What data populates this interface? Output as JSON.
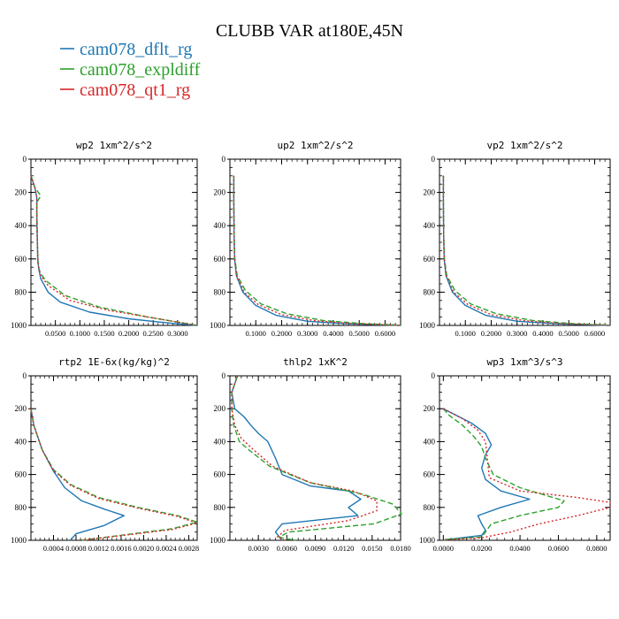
{
  "title": "CLUBB VAR at180E,45N",
  "colors": {
    "cam078_dflt_rg": "#1f77b4",
    "cam078_expldiff": "#2ca02c",
    "cam078_qt1_rg": "#d62728"
  },
  "legend": [
    {
      "name": "cam078_dflt_rg",
      "color": "#1f77b4"
    },
    {
      "name": "cam078_expldiff",
      "color": "#2ca02c"
    },
    {
      "name": "cam078_qt1_rg",
      "color": "#d62728"
    }
  ],
  "chart_data": [
    {
      "type": "line",
      "title": "wp2  1xm^2/s^2",
      "xlim": [
        0,
        0.34
      ],
      "ylim": [
        1000,
        0
      ],
      "xticks": [
        0.05,
        0.1,
        0.15,
        0.2,
        0.25,
        0.3
      ],
      "xtick_labels": [
        "0.0500",
        "0.1000",
        "0.1500",
        "0.2000",
        "0.2500",
        "0.3000"
      ],
      "yticks": [
        0,
        200,
        400,
        600,
        800,
        1000
      ],
      "ytick_labels": [
        "0",
        "200",
        "400",
        "600",
        "800",
        "1000"
      ],
      "series": [
        {
          "name": "cam078_dflt_rg",
          "style": "solid",
          "x": [
            0,
            0.008,
            0.012,
            0.012,
            0.013,
            0.014,
            0.016,
            0.02,
            0.035,
            0.06,
            0.12,
            0.2,
            0.28,
            0.34
          ],
          "y": [
            100,
            170,
            230,
            350,
            500,
            600,
            660,
            720,
            800,
            860,
            920,
            960,
            985,
            1000
          ]
        },
        {
          "name": "cam078_expldiff",
          "style": "dash",
          "x": [
            0,
            0.008,
            0.02,
            0.012,
            0.013,
            0.014,
            0.018,
            0.03,
            0.07,
            0.14,
            0.24,
            0.31,
            0.34
          ],
          "y": [
            100,
            170,
            220,
            260,
            450,
            620,
            680,
            730,
            820,
            890,
            950,
            985,
            1000
          ]
        },
        {
          "name": "cam078_qt1_rg",
          "style": "dot",
          "x": [
            0,
            0.008,
            0.012,
            0.012,
            0.013,
            0.015,
            0.02,
            0.035,
            0.08,
            0.16,
            0.26,
            0.32,
            0.34
          ],
          "y": [
            100,
            170,
            230,
            350,
            500,
            640,
            700,
            760,
            850,
            910,
            960,
            990,
            1000
          ]
        }
      ]
    },
    {
      "type": "line",
      "title": "up2  1xm^2/s^2",
      "xlim": [
        0,
        0.66
      ],
      "ylim": [
        1000,
        0
      ],
      "xticks": [
        0.1,
        0.2,
        0.3,
        0.4,
        0.5,
        0.6
      ],
      "xtick_labels": [
        "0.1000",
        "0.2000",
        "0.3000",
        "0.4000",
        "0.5000",
        "0.6000"
      ],
      "yticks": [
        0,
        200,
        400,
        600,
        800,
        1000
      ],
      "ytick_labels": [
        "0",
        "200",
        "400",
        "600",
        "800",
        "1000"
      ],
      "series": [
        {
          "name": "cam078_dflt_rg",
          "style": "solid",
          "x": [
            0.015,
            0.015,
            0.016,
            0.018,
            0.025,
            0.05,
            0.1,
            0.18,
            0.3,
            0.45,
            0.6,
            0.66
          ],
          "y": [
            100,
            250,
            450,
            600,
            700,
            800,
            880,
            940,
            975,
            990,
            997,
            1000
          ]
        },
        {
          "name": "cam078_expldiff",
          "style": "dash",
          "x": [
            0.015,
            0.015,
            0.016,
            0.019,
            0.028,
            0.06,
            0.12,
            0.22,
            0.36,
            0.52,
            0.64,
            0.66
          ],
          "y": [
            100,
            250,
            450,
            600,
            700,
            790,
            870,
            930,
            970,
            990,
            997,
            1000
          ]
        },
        {
          "name": "cam078_qt1_rg",
          "style": "dot",
          "x": [
            0.015,
            0.015,
            0.016,
            0.018,
            0.026,
            0.055,
            0.11,
            0.2,
            0.33,
            0.48,
            0.62,
            0.66
          ],
          "y": [
            100,
            250,
            450,
            600,
            700,
            800,
            875,
            935,
            972,
            990,
            997,
            1000
          ]
        }
      ]
    },
    {
      "type": "line",
      "title": "vp2  1xm^2/s^2",
      "xlim": [
        0,
        0.66
      ],
      "ylim": [
        1000,
        0
      ],
      "xticks": [
        0.1,
        0.2,
        0.3,
        0.4,
        0.5,
        0.6
      ],
      "xtick_labels": [
        "0.1000",
        "0.2000",
        "0.3000",
        "0.4000",
        "0.5000",
        "0.6000"
      ],
      "yticks": [
        0,
        200,
        400,
        600,
        800,
        1000
      ],
      "ytick_labels": [
        "0",
        "200",
        "400",
        "600",
        "800",
        "1000"
      ],
      "series": [
        {
          "name": "cam078_dflt_rg",
          "style": "solid",
          "x": [
            0.015,
            0.015,
            0.016,
            0.018,
            0.025,
            0.05,
            0.1,
            0.18,
            0.3,
            0.45,
            0.6,
            0.66
          ],
          "y": [
            100,
            250,
            450,
            600,
            700,
            800,
            880,
            940,
            975,
            990,
            997,
            1000
          ]
        },
        {
          "name": "cam078_expldiff",
          "style": "dash",
          "x": [
            0.015,
            0.015,
            0.016,
            0.019,
            0.028,
            0.06,
            0.12,
            0.22,
            0.36,
            0.52,
            0.64,
            0.66
          ],
          "y": [
            100,
            250,
            450,
            600,
            700,
            790,
            870,
            930,
            970,
            990,
            997,
            1000
          ]
        },
        {
          "name": "cam078_qt1_rg",
          "style": "dot",
          "x": [
            0.015,
            0.015,
            0.016,
            0.018,
            0.026,
            0.055,
            0.11,
            0.2,
            0.33,
            0.48,
            0.62,
            0.66
          ],
          "y": [
            100,
            250,
            450,
            600,
            700,
            800,
            875,
            935,
            972,
            990,
            997,
            1000
          ]
        }
      ]
    },
    {
      "type": "line",
      "title": "rtp2  1E-6x(kg/kg)^2",
      "xlim": [
        0,
        0.00295
      ],
      "ylim": [
        1000,
        0
      ],
      "xticks": [
        0.0004,
        0.0008,
        0.0012,
        0.0016,
        0.002,
        0.0024,
        0.0028
      ],
      "xtick_labels": [
        "0.0004",
        "0.0008",
        "0.0012",
        "0.0016",
        "0.0020",
        "0.0024",
        "0.0028"
      ],
      "yticks": [
        0,
        200,
        400,
        600,
        800,
        1000
      ],
      "ytick_labels": [
        "0",
        "200",
        "400",
        "600",
        "800",
        "1000"
      ],
      "series": [
        {
          "name": "cam078_dflt_rg",
          "style": "solid",
          "x": [
            0,
            5e-05,
            0.0002,
            0.0004,
            0.0006,
            0.0009,
            0.0013,
            0.00165,
            0.0013,
            0.0008,
            0.0007
          ],
          "y": [
            200,
            300,
            450,
            580,
            680,
            760,
            810,
            850,
            910,
            960,
            1000
          ]
        },
        {
          "name": "cam078_expldiff",
          "style": "dash",
          "x": [
            0,
            5e-05,
            0.0002,
            0.0004,
            0.0007,
            0.0012,
            0.0019,
            0.0026,
            0.00295,
            0.0025,
            0.0009
          ],
          "y": [
            200,
            300,
            450,
            570,
            660,
            740,
            800,
            850,
            890,
            930,
            1000
          ]
        },
        {
          "name": "cam078_qt1_rg",
          "style": "dot",
          "x": [
            0,
            5e-05,
            0.0002,
            0.0004,
            0.0007,
            0.0012,
            0.0019,
            0.0026,
            0.00295,
            0.0025,
            0.0009
          ],
          "y": [
            200,
            300,
            450,
            575,
            665,
            745,
            805,
            855,
            895,
            935,
            1000
          ]
        }
      ]
    },
    {
      "type": "line",
      "title": "thlp2  1xK^2",
      "xlim": [
        0,
        0.018
      ],
      "ylim": [
        1000,
        0
      ],
      "xticks": [
        0.003,
        0.006,
        0.009,
        0.012,
        0.015,
        0.018
      ],
      "xtick_labels": [
        "0.0030",
        "0.0060",
        "0.0090",
        "0.0120",
        "0.0150",
        "0.0180"
      ],
      "yticks": [
        0,
        200,
        400,
        600,
        800,
        1000
      ],
      "ytick_labels": [
        "0",
        "200",
        "400",
        "600",
        "800",
        "1000"
      ],
      "series": [
        {
          "name": "cam078_dflt_rg",
          "style": "solid",
          "x": [
            0.0008,
            0.0002,
            0.0005,
            0.0015,
            0.0022,
            0.003,
            0.004,
            0.0048,
            0.0055,
            0.0085,
            0.0125,
            0.0138,
            0.0125,
            0.0135,
            0.0055,
            0.0048,
            0.0055
          ],
          "y": [
            0,
            100,
            200,
            250,
            300,
            350,
            400,
            500,
            600,
            670,
            700,
            750,
            800,
            850,
            900,
            950,
            1000
          ]
        },
        {
          "name": "cam078_expldiff",
          "style": "dash",
          "x": [
            0.0008,
            0.0002,
            0.0002,
            0.0004,
            0.001,
            0.002,
            0.0042,
            0.0085,
            0.014,
            0.0172,
            0.0181,
            0.0152,
            0.0062,
            0.0052,
            0.0058,
            0.007
          ],
          "y": [
            0,
            100,
            200,
            300,
            400,
            450,
            550,
            650,
            720,
            780,
            840,
            900,
            950,
            980,
            990,
            1000
          ]
        },
        {
          "name": "cam078_qt1_rg",
          "style": "dot",
          "x": [
            0.0008,
            0.0002,
            0.0002,
            0.0005,
            0.0012,
            0.0025,
            0.0045,
            0.0085,
            0.013,
            0.0155,
            0.0155,
            0.0125,
            0.0058,
            0.005,
            0.0058
          ],
          "y": [
            0,
            100,
            200,
            300,
            380,
            450,
            550,
            650,
            700,
            760,
            820,
            880,
            940,
            980,
            1000
          ]
        }
      ]
    },
    {
      "type": "line",
      "title": "wp3  1xm^3/s^3",
      "xlim": [
        -0.002,
        0.087
      ],
      "ylim": [
        1000,
        0
      ],
      "xticks": [
        0.0,
        0.02,
        0.04,
        0.06,
        0.08
      ],
      "xtick_labels": [
        "0.0000",
        "0.0200",
        "0.0400",
        "0.0600",
        "0.0800"
      ],
      "yticks": [
        0,
        200,
        400,
        600,
        800,
        1000
      ],
      "ytick_labels": [
        "0",
        "200",
        "400",
        "600",
        "800",
        "1000"
      ],
      "series": [
        {
          "name": "cam078_dflt_rg",
          "style": "solid",
          "x": [
            0,
            0.005,
            0.015,
            0.022,
            0.025,
            0.022,
            0.02,
            0.022,
            0.03,
            0.045,
            0.03,
            0.018,
            0.02,
            0.022,
            0.02,
            0.002,
            0
          ],
          "y": [
            200,
            230,
            290,
            350,
            420,
            480,
            560,
            630,
            700,
            750,
            800,
            850,
            900,
            940,
            970,
            995,
            1000
          ]
        },
        {
          "name": "cam078_expldiff",
          "style": "dash",
          "x": [
            0,
            0.003,
            0.01,
            0.016,
            0.02,
            0.022,
            0.026,
            0.04,
            0.063,
            0.06,
            0.04,
            0.025,
            0.022,
            0.02,
            0.001,
            0
          ],
          "y": [
            200,
            240,
            300,
            370,
            430,
            500,
            600,
            680,
            760,
            800,
            850,
            900,
            950,
            980,
            995,
            1000
          ]
        },
        {
          "name": "cam078_qt1_rg",
          "style": "dot",
          "x": [
            0,
            0.01,
            0.018,
            0.022,
            0.024,
            0.04,
            0.07,
            0.087,
            0.087,
            0.07,
            0.05,
            0.035,
            0.02,
            0.001,
            0
          ],
          "y": [
            200,
            260,
            330,
            400,
            620,
            700,
            740,
            770,
            800,
            850,
            900,
            950,
            985,
            998,
            1000
          ]
        }
      ]
    }
  ]
}
